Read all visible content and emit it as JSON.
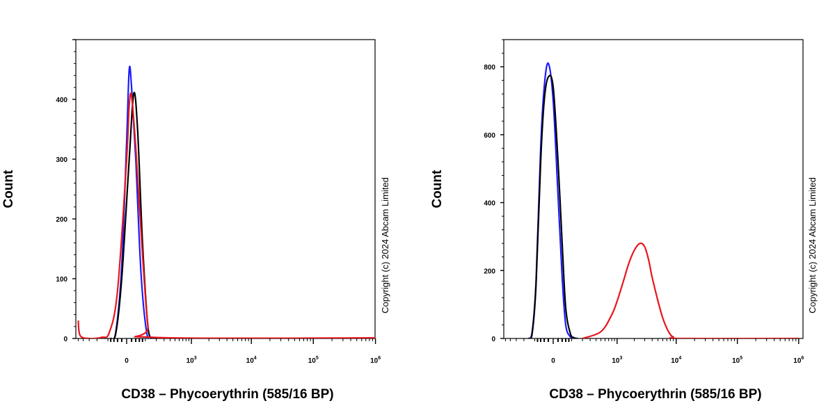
{
  "colors": {
    "blue": "#1a1aff",
    "black": "#000000",
    "red": "#e8151b"
  },
  "chart_data": [
    {
      "type": "line",
      "subtype": "flow cytometry histogram",
      "xlabel": "CD38 – Phycoerythrin (585/16 BP)",
      "ylabel": "Count",
      "copyright": "Copyright (c) 2024 Abcam Limited",
      "x_scale": "biexponential",
      "x_ticks": [
        {
          "value": 0,
          "label": "0"
        },
        {
          "value": 1000,
          "label": "10",
          "exp": "3"
        },
        {
          "value": 10000,
          "label": "10",
          "exp": "4"
        },
        {
          "value": 100000,
          "label": "10",
          "exp": "5"
        },
        {
          "value": 1000000,
          "label": "10",
          "exp": "6"
        }
      ],
      "y_ticks": [
        0,
        100,
        200,
        300,
        400
      ],
      "ylim": [
        0,
        500
      ],
      "series": [
        {
          "color": "blue",
          "x": [
            -80,
            -50,
            -20,
            0,
            10,
            20,
            40,
            70,
            110,
            150
          ],
          "y": [
            0,
            10,
            120,
            330,
            450,
            420,
            300,
            110,
            10,
            0
          ]
        },
        {
          "color": "black",
          "x": [
            -80,
            -50,
            -20,
            10,
            30,
            50,
            80,
            120,
            160
          ],
          "y": [
            0,
            8,
            100,
            300,
            410,
            350,
            160,
            20,
            0
          ]
        },
        {
          "color": "red",
          "x": [
            -500,
            -460,
            -300,
            -150,
            -90,
            -40,
            0,
            10,
            20,
            40,
            80,
            120,
            160,
            1000000
          ],
          "y": [
            30,
            5,
            0,
            2,
            10,
            80,
            300,
            390,
            405,
            320,
            140,
            20,
            2,
            1
          ]
        }
      ]
    },
    {
      "type": "line",
      "subtype": "flow cytometry histogram",
      "xlabel": "CD38 – Phycoerythrin (585/16 BP)",
      "ylabel": "Count",
      "copyright": "Copyright (c) 2024 Abcam Limited",
      "x_scale": "biexponential",
      "x_ticks": [
        {
          "value": 0,
          "label": "0"
        },
        {
          "value": 1000,
          "label": "10",
          "exp": "3"
        },
        {
          "value": 10000,
          "label": "10",
          "exp": "4"
        },
        {
          "value": 100000,
          "label": "10",
          "exp": "5"
        },
        {
          "value": 1000000,
          "label": "10",
          "exp": "6"
        }
      ],
      "y_ticks": [
        0,
        200,
        400,
        600,
        800
      ],
      "ylim": [
        0,
        880
      ],
      "series": [
        {
          "color": "blue",
          "x": [
            -150,
            -120,
            -90,
            -60,
            -40,
            -20,
            0,
            20,
            40,
            60,
            90,
            120
          ],
          "y": [
            0,
            20,
            170,
            560,
            740,
            810,
            700,
            420,
            180,
            40,
            5,
            0
          ]
        },
        {
          "color": "black",
          "x": [
            -150,
            -120,
            -90,
            -60,
            -40,
            -20,
            0,
            20,
            40,
            60,
            90,
            120,
            150
          ],
          "y": [
            0,
            15,
            160,
            520,
            700,
            770,
            740,
            520,
            280,
            90,
            15,
            2,
            0
          ]
        },
        {
          "color": "red",
          "x": [
            200,
            500,
            800,
            1000,
            1300,
            1600,
            2000,
            2500,
            3000,
            3500,
            4000,
            5000,
            6000,
            7000,
            8000,
            9000,
            12000,
            1000000
          ],
          "y": [
            0,
            20,
            70,
            110,
            170,
            220,
            260,
            280,
            270,
            230,
            180,
            110,
            60,
            30,
            12,
            4,
            0,
            0
          ]
        }
      ]
    }
  ]
}
